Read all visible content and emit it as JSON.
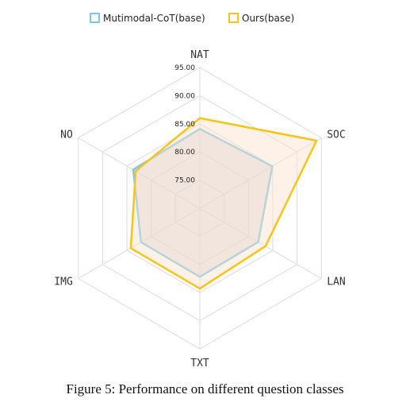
{
  "caption": "Figure 5: Performance on different question classes",
  "chart_data": {
    "type": "radar",
    "axes": [
      "NAT",
      "SOC",
      "LAN",
      "TXT",
      "IMG",
      "NO"
    ],
    "ticks": [
      "75.00",
      "80.00",
      "85.00",
      "90.00",
      "95.00"
    ],
    "range": [
      70,
      95
    ],
    "grid": true,
    "legend_position": "top",
    "series": [
      {
        "name": "Mutimodal-CoT(base)",
        "color": "#7ec8e3",
        "fill": "#c9c9d2",
        "values": [
          84.1,
          84.9,
          82.0,
          82.2,
          82.1,
          83.7
        ]
      },
      {
        "name": "Ours(base)",
        "color": "#f5c518",
        "fill": "#fce3cc",
        "values": [
          86.0,
          94.0,
          83.5,
          84.3,
          84.2,
          83.2
        ]
      }
    ]
  }
}
